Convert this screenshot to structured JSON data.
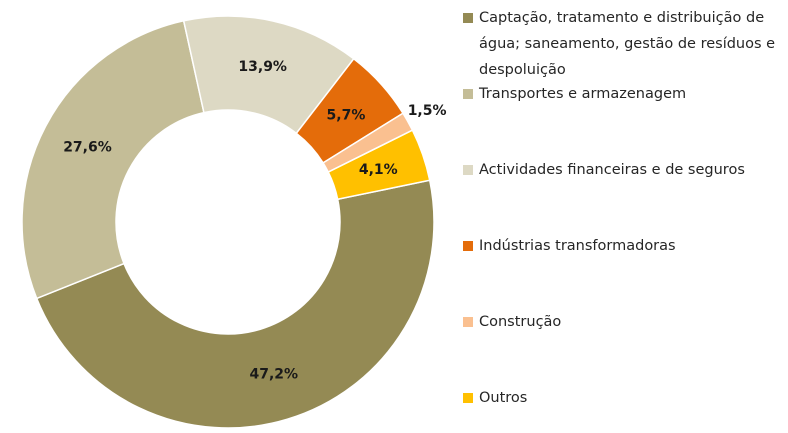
{
  "chart_data": {
    "type": "donut",
    "categories": [
      "Captação, tratamento e distribuição de água; saneamento,  gestão de resíduos e despoluição",
      "Transportes e armazenagem",
      "Actividades financeiras e de seguros",
      "Indústrias transformadoras",
      "Construção",
      "Outros"
    ],
    "values": [
      47.2,
      27.6,
      13.9,
      5.7,
      1.5,
      4.1
    ],
    "value_labels": [
      "47,2%",
      "27,6%",
      "13,9%",
      "5,7%",
      "1,5%",
      "4,1%"
    ],
    "colors": [
      "#948a54",
      "#c4bd97",
      "#ddd9c4",
      "#e46c0a",
      "#fac090",
      "#ffc000"
    ]
  }
}
